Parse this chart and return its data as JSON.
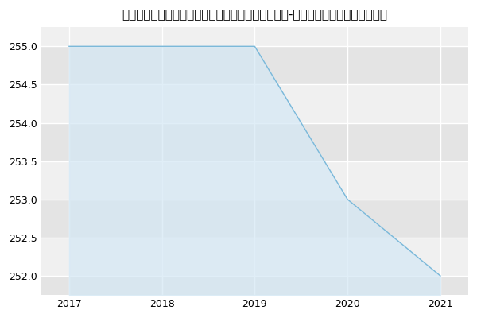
{
  "title": "浙江农林大学马克思主义学院、法政学院农业管理（-历年复试）研究生录取分数线",
  "x": [
    2017,
    2018,
    2019,
    2020,
    2021
  ],
  "y": [
    255,
    255,
    255,
    253,
    252
  ],
  "xlim": [
    2016.7,
    2021.3
  ],
  "ylim": [
    251.75,
    255.25
  ],
  "yticks": [
    252.0,
    252.5,
    253.0,
    253.5,
    254.0,
    254.5,
    255.0
  ],
  "xticks": [
    2017,
    2018,
    2019,
    2020,
    2021
  ],
  "line_color": "#7ab8d9",
  "fill_color": "#d4e8f5",
  "background_color": "#ffffff",
  "plot_background_color": "#ebebeb",
  "band_color_light": "#f0f0f0",
  "band_color_dark": "#e4e4e4",
  "grid_color": "#ffffff",
  "title_fontsize": 11,
  "tick_fontsize": 9
}
